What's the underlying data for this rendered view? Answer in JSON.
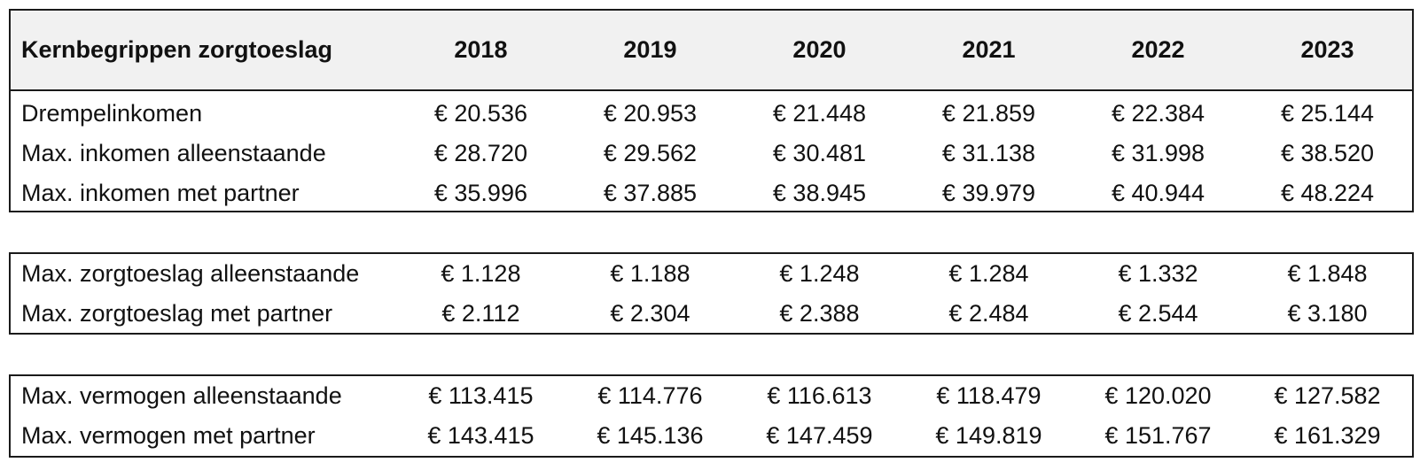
{
  "table": {
    "title": "Kernbegrippen zorgtoeslag",
    "years": [
      "2018",
      "2019",
      "2020",
      "2021",
      "2022",
      "2023"
    ],
    "groups": [
      {
        "rows": [
          {
            "label": "Drempelinkomen",
            "values": [
              "€ 20.536",
              "€ 20.953",
              "€ 21.448",
              "€ 21.859",
              "€ 22.384",
              "€ 25.144"
            ]
          },
          {
            "label": "Max. inkomen alleenstaande",
            "values": [
              "€ 28.720",
              "€ 29.562",
              "€ 30.481",
              "€ 31.138",
              "€ 31.998",
              "€ 38.520"
            ]
          },
          {
            "label": "Max. inkomen met partner",
            "values": [
              "€ 35.996",
              "€ 37.885",
              "€ 38.945",
              "€ 39.979",
              "€ 40.944",
              "€ 48.224"
            ]
          }
        ]
      },
      {
        "rows": [
          {
            "label": "Max. zorgtoeslag alleenstaande",
            "values": [
              "€ 1.128",
              "€ 1.188",
              "€ 1.248",
              "€ 1.284",
              "€ 1.332",
              "€ 1.848"
            ]
          },
          {
            "label": "Max. zorgtoeslag met partner",
            "values": [
              "€ 2.112",
              "€ 2.304",
              "€ 2.388",
              "€ 2.484",
              "€ 2.544",
              "€ 3.180"
            ]
          }
        ]
      },
      {
        "rows": [
          {
            "label": "Max. vermogen alleenstaande",
            "values": [
              "€ 113.415",
              "€ 114.776",
              "€ 116.613",
              "€ 118.479",
              "€ 120.020",
              "€ 127.582"
            ]
          },
          {
            "label": "Max. vermogen met partner",
            "values": [
              "€ 143.415",
              "€ 145.136",
              "€ 147.459",
              "€ 149.819",
              "€ 151.767",
              "€ 161.329"
            ]
          }
        ]
      }
    ]
  }
}
